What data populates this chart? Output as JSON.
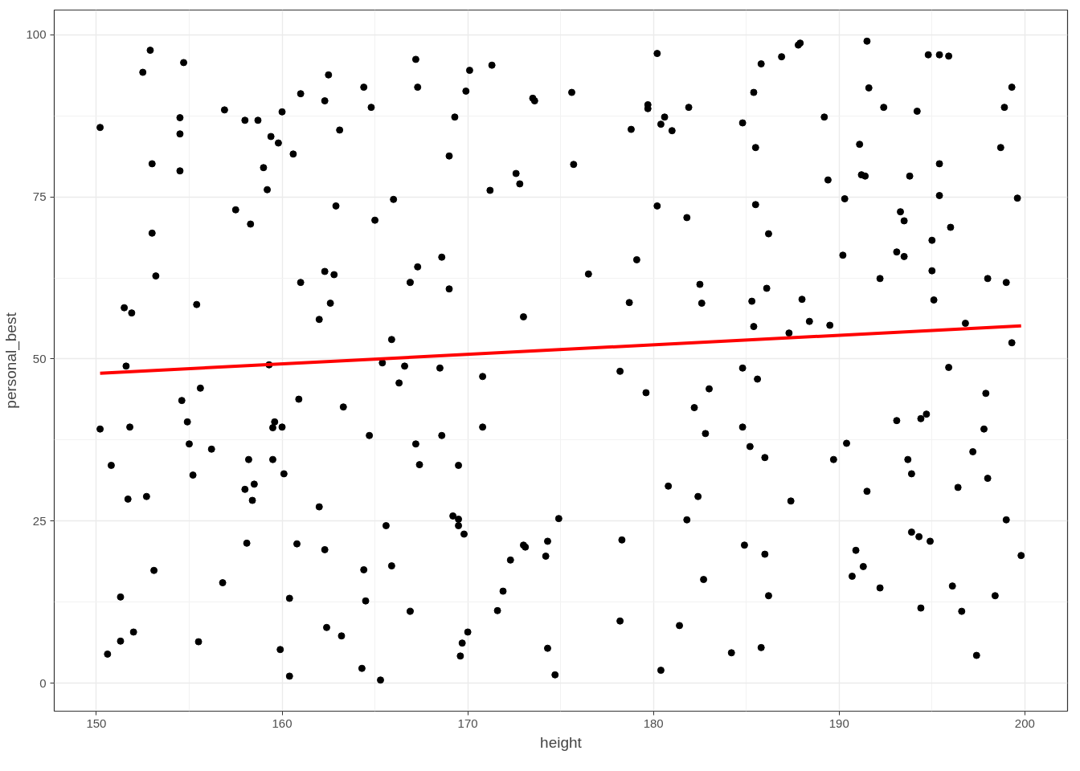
{
  "chart_data": {
    "type": "scatter",
    "xlabel": "height",
    "ylabel": "personal_best",
    "xlim": [
      147.73,
      202.3
    ],
    "ylim": [
      -4.3,
      103.8
    ],
    "xticks": [
      150,
      160,
      170,
      180,
      190,
      200
    ],
    "yticks": [
      0,
      25,
      50,
      75,
      100
    ],
    "grid": true,
    "series": [
      {
        "color": "#000000",
        "marker": "circle",
        "x": [
          150.2,
          150.2,
          150.6,
          150.8,
          151.3,
          151.3,
          151.5,
          151.6,
          151.7,
          151.8,
          151.9,
          152.0,
          152.5,
          152.7,
          152.9,
          153.0,
          153.0,
          153.1,
          153.2,
          154.5,
          154.5,
          154.5,
          154.6,
          154.7,
          154.9,
          155.0,
          155.2,
          155.4,
          155.5,
          155.6,
          156.2,
          156.8,
          156.9,
          157.5,
          158.0,
          158.0,
          158.1,
          158.2,
          158.3,
          158.4,
          158.5,
          158.7,
          159.0,
          159.2,
          159.3,
          159.4,
          159.5,
          159.5,
          159.6,
          159.8,
          159.9,
          160.0,
          160.0,
          160.1,
          160.4,
          160.4,
          160.6,
          160.8,
          160.9,
          161.0,
          161.0,
          162.0,
          162.0,
          162.3,
          162.3,
          162.3,
          162.4,
          162.5,
          162.6,
          162.8,
          162.9,
          163.1,
          163.2,
          163.3,
          164.3,
          164.4,
          164.4,
          164.5,
          164.7,
          164.8,
          165.0,
          165.3,
          165.4,
          165.6,
          165.9,
          165.9,
          166.0,
          166.3,
          166.6,
          166.9,
          166.9,
          167.2,
          167.2,
          167.3,
          167.3,
          167.4,
          168.5,
          168.6,
          168.6,
          169.0,
          169.0,
          169.2,
          169.3,
          169.5,
          169.5,
          169.5,
          169.6,
          169.7,
          169.8,
          169.9,
          170.0,
          170.1,
          170.8,
          170.8,
          171.2,
          171.3,
          171.6,
          171.9,
          172.3,
          172.6,
          172.8,
          173.0,
          173.0,
          173.1,
          173.5,
          173.6,
          174.2,
          174.3,
          174.3,
          174.7,
          174.9,
          175.6,
          175.7,
          176.5,
          178.2,
          178.2,
          178.3,
          178.7,
          178.8,
          179.1,
          179.6,
          179.7,
          179.7,
          180.2,
          180.2,
          180.4,
          180.4,
          180.6,
          180.8,
          181.0,
          181.4,
          181.8,
          181.8,
          181.9,
          182.2,
          182.4,
          182.5,
          182.6,
          182.7,
          182.8,
          183.0,
          184.2,
          184.8,
          184.8,
          184.8,
          184.9,
          185.2,
          185.3,
          185.4,
          185.4,
          185.5,
          185.5,
          185.6,
          185.8,
          185.8,
          186.0,
          186.0,
          186.1,
          186.2,
          186.2,
          186.9,
          187.3,
          187.4,
          187.8,
          187.9,
          188.0,
          188.4,
          189.2,
          189.4,
          189.5,
          189.7,
          190.2,
          190.3,
          190.4,
          190.7,
          190.9,
          191.1,
          191.2,
          191.3,
          191.4,
          191.5,
          191.5,
          191.6,
          192.2,
          192.2,
          192.4,
          193.1,
          193.1,
          193.3,
          193.5,
          193.5,
          193.7,
          193.8,
          193.9,
          193.9,
          194.2,
          194.3,
          194.4,
          194.4,
          194.7,
          194.8,
          194.9,
          195.0,
          195.0,
          195.1,
          195.4,
          195.4,
          195.4,
          195.9,
          195.9,
          196.0,
          196.1,
          196.4,
          196.6,
          196.8,
          197.2,
          197.4,
          197.8,
          197.9,
          198.0,
          198.0,
          198.4,
          198.7,
          198.9,
          199.0,
          199.0,
          199.3,
          199.3,
          199.6,
          199.8
        ],
        "values": [
          85.7,
          39.2,
          4.5,
          33.6,
          13.3,
          6.5,
          57.9,
          48.9,
          28.4,
          39.5,
          57.1,
          7.9,
          94.2,
          28.8,
          97.6,
          80.1,
          69.4,
          17.4,
          62.8,
          79.0,
          87.2,
          84.7,
          43.6,
          95.7,
          40.3,
          36.9,
          32.1,
          58.4,
          6.4,
          45.5,
          36.1,
          15.5,
          88.4,
          73.0,
          29.9,
          86.8,
          21.6,
          34.5,
          70.8,
          28.2,
          30.7,
          86.8,
          79.5,
          76.1,
          49.1,
          84.3,
          39.4,
          34.5,
          40.3,
          83.3,
          5.2,
          88.1,
          39.5,
          32.3,
          1.1,
          13.1,
          81.6,
          21.5,
          43.8,
          61.8,
          90.9,
          56.1,
          27.2,
          89.8,
          20.6,
          63.5,
          8.6,
          93.8,
          58.6,
          63.0,
          73.6,
          85.3,
          7.3,
          42.6,
          2.3,
          17.5,
          91.9,
          12.7,
          38.2,
          88.8,
          71.4,
          0.5,
          49.4,
          24.3,
          18.1,
          53.0,
          74.6,
          46.3,
          48.9,
          61.8,
          11.1,
          96.2,
          36.9,
          91.9,
          64.2,
          33.7,
          48.6,
          65.7,
          38.2,
          81.3,
          60.8,
          25.8,
          87.3,
          25.3,
          24.3,
          33.6,
          4.2,
          6.2,
          23.0,
          91.3,
          7.9,
          94.5,
          47.3,
          39.5,
          76.0,
          95.3,
          11.2,
          14.2,
          19.0,
          78.6,
          77.0,
          56.5,
          21.3,
          21.0,
          90.2,
          89.8,
          19.6,
          21.9,
          5.4,
          1.3,
          25.4,
          91.1,
          80.0,
          63.1,
          9.6,
          48.1,
          22.1,
          58.7,
          85.4,
          65.3,
          44.8,
          89.2,
          88.6,
          73.6,
          97.1,
          86.2,
          2.0,
          87.3,
          30.4,
          85.2,
          8.9,
          25.2,
          71.8,
          88.8,
          42.5,
          28.8,
          61.5,
          58.6,
          16.0,
          38.5,
          45.4,
          4.7,
          48.6,
          39.5,
          86.4,
          21.3,
          36.5,
          58.9,
          55.0,
          91.1,
          82.6,
          73.8,
          46.9,
          95.5,
          5.5,
          34.8,
          19.9,
          60.9,
          13.5,
          69.3,
          96.6,
          54.0,
          28.1,
          98.4,
          98.7,
          59.2,
          55.8,
          87.3,
          77.6,
          55.2,
          34.5,
          66.0,
          74.7,
          37.0,
          16.5,
          20.5,
          83.1,
          78.4,
          18.0,
          78.2,
          99.0,
          29.6,
          91.8,
          62.4,
          14.7,
          88.8,
          40.5,
          66.5,
          72.7,
          71.3,
          65.8,
          34.5,
          78.2,
          32.3,
          23.3,
          88.2,
          22.6,
          40.8,
          11.6,
          41.5,
          96.9,
          21.9,
          68.3,
          63.6,
          59.1,
          80.1,
          96.9,
          75.2,
          48.7,
          96.7,
          70.3,
          15.0,
          30.2,
          11.1,
          55.5,
          35.7,
          4.3,
          39.2,
          44.7,
          31.6,
          62.4,
          13.5,
          82.6,
          88.8,
          61.8,
          25.2,
          91.9,
          52.5,
          74.8,
          19.7
        ]
      },
      {
        "type": "line",
        "marker": "none",
        "color": "#ff0000",
        "x": [
          150.2,
          199.8
        ],
        "values": [
          47.8,
          55.1
        ]
      }
    ]
  }
}
